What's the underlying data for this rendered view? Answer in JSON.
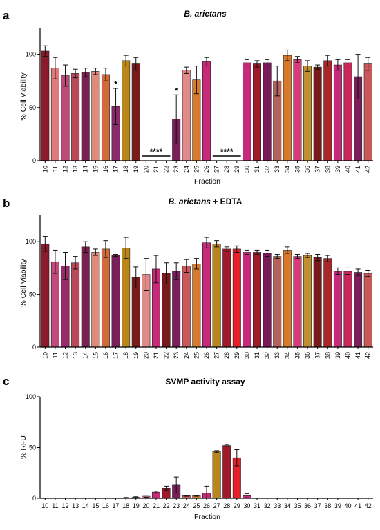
{
  "figure": {
    "panels": [
      "a",
      "b",
      "c"
    ]
  },
  "chart_data": [
    {
      "type": "bar",
      "panel": "a",
      "title": "B. arietans",
      "title_italic_part": "B. arietans",
      "title_suffix": "",
      "xlabel": "Fraction",
      "ylabel": "% Cell Viability",
      "ylim": [
        0,
        125
      ],
      "yticks": [
        0,
        50,
        100
      ],
      "categories": [
        "10",
        "11",
        "12",
        "13",
        "14",
        "15",
        "16",
        "17",
        "18",
        "19",
        "20",
        "21",
        "22",
        "23",
        "24",
        "25",
        "26",
        "27",
        "28",
        "29",
        "30",
        "31",
        "32",
        "33",
        "34",
        "35",
        "36",
        "37",
        "38",
        "39",
        "40",
        "41",
        "42"
      ],
      "values": [
        103,
        87,
        80,
        82,
        83,
        84,
        81,
        51,
        94,
        91,
        0,
        0,
        0,
        39,
        85,
        76,
        93,
        0,
        0,
        0,
        92,
        91,
        92,
        75,
        99,
        95,
        89,
        88,
        94,
        90,
        92,
        79,
        91
      ],
      "errors": [
        5,
        10,
        10,
        4,
        4,
        3,
        6,
        17,
        5,
        6,
        0,
        0,
        0,
        23,
        3,
        13,
        4,
        0,
        0,
        0,
        3,
        3,
        3,
        14,
        5,
        3,
        5,
        2,
        5,
        5,
        3,
        21,
        6
      ],
      "colors": [
        "#8b1a2b",
        "#e07b7b",
        "#c04a7a",
        "#b84a5a",
        "#7a2050",
        "#e08a7a",
        "#d06a3a",
        "#8a2a6a",
        "#b8861b",
        "#7a1a1a",
        "#ffffff",
        "#ffffff",
        "#ffffff",
        "#7a1f5a",
        "#e08a8a",
        "#d87a2a",
        "#c82a7a",
        "#ffffff",
        "#ffffff",
        "#ffffff",
        "#c82a7a",
        "#a01a2a",
        "#7a1a5a",
        "#b8605a",
        "#d8782a",
        "#d83a7a",
        "#c09030",
        "#7a1a1a",
        "#a8282a",
        "#c82a7a",
        "#c8285a",
        "#7a1f5a",
        "#c8585a"
      ],
      "annotations": [
        {
          "text": "*",
          "category": "17"
        },
        {
          "text": "*",
          "category": "23"
        },
        {
          "text": "****",
          "from": "20",
          "to": "22"
        },
        {
          "text": "****",
          "from": "27",
          "to": "29"
        }
      ]
    },
    {
      "type": "bar",
      "panel": "b",
      "title": "B. arietans + EDTA",
      "title_italic_part": "B. arietans",
      "title_suffix": " + EDTA",
      "xlabel": "",
      "ylabel": "% Cell Viability",
      "ylim": [
        0,
        125
      ],
      "yticks": [
        0,
        50,
        100
      ],
      "categories": [
        "10",
        "11",
        "12",
        "13",
        "14",
        "15",
        "16",
        "17",
        "18",
        "19",
        "20",
        "21",
        "22",
        "23",
        "24",
        "25",
        "26",
        "27",
        "28",
        "29",
        "30",
        "31",
        "32",
        "33",
        "34",
        "35",
        "36",
        "37",
        "38",
        "39",
        "40",
        "41",
        "42"
      ],
      "values": [
        98,
        81,
        77,
        80,
        95,
        90,
        93,
        87,
        94,
        66,
        69,
        74,
        70,
        72,
        77,
        79,
        99,
        98,
        93,
        93,
        90,
        90,
        89,
        86,
        92,
        86,
        87,
        85,
        84,
        72,
        72,
        71,
        70
      ],
      "errors": [
        7,
        11,
        13,
        6,
        5,
        3,
        8,
        1,
        10,
        10,
        15,
        13,
        10,
        8,
        6,
        5,
        5,
        3,
        2,
        3,
        2,
        2,
        3,
        2,
        3,
        2,
        2,
        3,
        3,
        3,
        3,
        3,
        3
      ],
      "colors": [
        "#8b1a2b",
        "#c04a7a",
        "#9a2a6a",
        "#b84a5a",
        "#7a2050",
        "#e08a7a",
        "#d06a3a",
        "#7a1f5a",
        "#b8861b",
        "#7a1a1a",
        "#e08a8a",
        "#c82a7a",
        "#7a1a1a",
        "#7a1f5a",
        "#c8585a",
        "#d87a2a",
        "#c82a7a",
        "#b8861b",
        "#a01a2a",
        "#e8202a",
        "#c82a7a",
        "#a01a2a",
        "#7a1a5a",
        "#b8605a",
        "#d8782a",
        "#d83a7a",
        "#c09030",
        "#7a1a1a",
        "#a8282a",
        "#c82a7a",
        "#c8285a",
        "#7a1f5a",
        "#c8585a"
      ],
      "annotations": []
    },
    {
      "type": "bar",
      "panel": "c",
      "title": "SVMP activity assay",
      "title_italic_part": "",
      "title_suffix": "SVMP activity assay",
      "xlabel": "Fraction",
      "ylabel": "% RFU",
      "ylim": [
        0,
        100
      ],
      "yticks": [
        0,
        50,
        100
      ],
      "categories": [
        "10",
        "11",
        "12",
        "13",
        "14",
        "15",
        "16",
        "17",
        "18",
        "19",
        "20",
        "21",
        "22",
        "23",
        "24",
        "25",
        "26",
        "27",
        "28",
        "29",
        "30",
        "31",
        "32",
        "33",
        "34",
        "35",
        "36",
        "37",
        "38",
        "39",
        "40",
        "41",
        "42"
      ],
      "values": [
        0,
        0,
        0,
        0,
        0,
        0,
        0,
        0,
        0.5,
        1,
        2,
        6,
        10,
        13,
        2.5,
        2.5,
        5,
        46,
        52,
        40,
        2.5,
        0,
        0,
        0,
        0,
        0,
        0,
        0,
        0,
        0,
        0,
        0,
        0
      ],
      "errors": [
        0,
        0,
        0,
        0,
        0,
        0,
        0,
        0,
        0.3,
        0.5,
        1,
        1,
        2,
        8,
        0.5,
        0.5,
        7,
        1,
        1,
        8,
        2,
        0,
        0,
        0,
        0,
        0,
        0,
        0,
        0,
        0,
        0,
        0,
        0
      ],
      "colors": [
        "#8b1a2b",
        "#e07b7b",
        "#c04a7a",
        "#b84a5a",
        "#7a2050",
        "#e08a7a",
        "#d06a3a",
        "#7a1f5a",
        "#b8861b",
        "#7a1a1a",
        "#e08a8a",
        "#c82a7a",
        "#a01a2a",
        "#7a1f5a",
        "#c8585a",
        "#d87a2a",
        "#c82a7a",
        "#b8861b",
        "#a01a2a",
        "#e8202a",
        "#c82a7a",
        "#a01a2a",
        "#7a1a5a",
        "#b8605a",
        "#d8782a",
        "#d83a7a",
        "#c09030",
        "#7a1a1a",
        "#a8282a",
        "#c82a7a",
        "#c8285a",
        "#7a1f5a",
        "#c8585a"
      ],
      "annotations": []
    }
  ]
}
